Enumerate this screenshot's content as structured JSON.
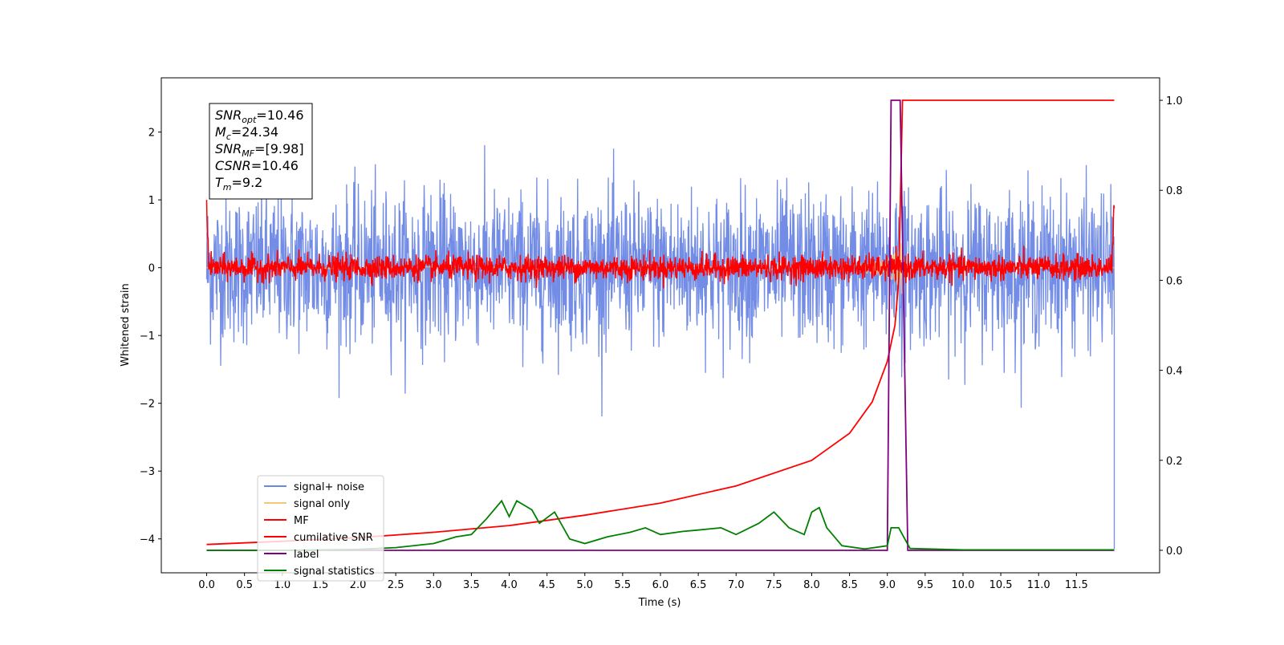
{
  "chart_data": {
    "type": "line",
    "xlabel": "Time (s)",
    "ylabel_left": "Whitened strain",
    "ylabel_right": "",
    "xlim": [
      -0.6,
      12.6
    ],
    "ylim_left": [
      -4.5,
      2.8
    ],
    "ylim_right": [
      -0.05,
      1.05
    ],
    "x_ticks": [
      "0.0",
      "0.5",
      "1.0",
      "1.5",
      "2.0",
      "2.5",
      "3.0",
      "3.5",
      "4.0",
      "4.5",
      "5.0",
      "5.5",
      "6.0",
      "6.5",
      "7.0",
      "7.5",
      "8.0",
      "8.5",
      "9.0",
      "9.5",
      "10.0",
      "10.5",
      "11.0",
      "11.5"
    ],
    "y_ticks_left": [
      "−4",
      "−3",
      "−2",
      "−1",
      "0",
      "1",
      "2"
    ],
    "y_ticks_right": [
      "0.0",
      "0.2",
      "0.4",
      "0.6",
      "0.8",
      "1.0"
    ],
    "grid": false,
    "legend_position": "lower-left",
    "annotation": {
      "lines": [
        {
          "sym": "SNR",
          "sub": "opt",
          "rest": "=10.46"
        },
        {
          "sym": "M",
          "sub": "c",
          "rest": "=24.34"
        },
        {
          "sym": "SNR",
          "sub": "MF",
          "rest": "=[9.98]"
        },
        {
          "sym": "CSNR",
          "sub": "",
          "rest": "=10.46"
        },
        {
          "sym": "T",
          "sub": "m",
          "rest": "=9.2"
        }
      ]
    },
    "series": [
      {
        "name": "signal+ noise",
        "axis": "left",
        "color": "#6b87e6",
        "description_values": {
          "noise_sigma": 0.55,
          "t_start": 0.0,
          "t_end": 12.0
        }
      },
      {
        "name": "signal only",
        "axis": "left",
        "color": "#f5c878",
        "description_values": {
          "merger_time": 9.2,
          "peak_amplitude": 0.45
        }
      },
      {
        "name": "MF",
        "axis": "left",
        "color": "#ff0000",
        "description_values": {
          "noise_sigma": 0.09,
          "t_start": 0.0,
          "t_end": 12.0
        }
      },
      {
        "name": "cumilative SNR",
        "axis": "right",
        "color": "#ff0000",
        "points": [
          [
            0.0,
            0.013
          ],
          [
            1.0,
            0.02
          ],
          [
            2.0,
            0.028
          ],
          [
            3.0,
            0.04
          ],
          [
            4.0,
            0.055
          ],
          [
            5.0,
            0.078
          ],
          [
            6.0,
            0.105
          ],
          [
            7.0,
            0.143
          ],
          [
            8.0,
            0.2
          ],
          [
            8.5,
            0.26
          ],
          [
            8.8,
            0.33
          ],
          [
            9.0,
            0.42
          ],
          [
            9.1,
            0.5
          ],
          [
            9.15,
            0.6
          ],
          [
            9.2,
            1.0
          ],
          [
            12.0,
            1.0
          ]
        ]
      },
      {
        "name": "label",
        "axis": "right",
        "color": "#800080",
        "points": [
          [
            0.0,
            0.0
          ],
          [
            9.0,
            0.0
          ],
          [
            9.05,
            1.0
          ],
          [
            9.17,
            1.0
          ],
          [
            9.27,
            0.0
          ],
          [
            12.0,
            0.0
          ]
        ]
      },
      {
        "name": "signal statistics",
        "axis": "right",
        "color": "#008000",
        "points": [
          [
            0.0,
            0.0
          ],
          [
            1.0,
            0.0
          ],
          [
            2.0,
            0.002
          ],
          [
            2.5,
            0.006
          ],
          [
            3.0,
            0.015
          ],
          [
            3.3,
            0.03
          ],
          [
            3.5,
            0.035
          ],
          [
            3.7,
            0.07
          ],
          [
            3.9,
            0.11
          ],
          [
            4.0,
            0.075
          ],
          [
            4.1,
            0.11
          ],
          [
            4.2,
            0.1
          ],
          [
            4.3,
            0.09
          ],
          [
            4.4,
            0.06
          ],
          [
            4.6,
            0.085
          ],
          [
            4.8,
            0.025
          ],
          [
            5.0,
            0.015
          ],
          [
            5.3,
            0.03
          ],
          [
            5.6,
            0.04
          ],
          [
            5.8,
            0.05
          ],
          [
            6.0,
            0.035
          ],
          [
            6.3,
            0.042
          ],
          [
            6.5,
            0.045
          ],
          [
            6.8,
            0.05
          ],
          [
            7.0,
            0.035
          ],
          [
            7.3,
            0.06
          ],
          [
            7.5,
            0.085
          ],
          [
            7.7,
            0.05
          ],
          [
            7.9,
            0.035
          ],
          [
            8.0,
            0.085
          ],
          [
            8.1,
            0.095
          ],
          [
            8.2,
            0.05
          ],
          [
            8.4,
            0.01
          ],
          [
            8.7,
            0.003
          ],
          [
            9.0,
            0.01
          ],
          [
            9.05,
            0.05
          ],
          [
            9.15,
            0.05
          ],
          [
            9.3,
            0.004
          ],
          [
            10.0,
            0.001
          ],
          [
            12.0,
            0.001
          ]
        ]
      }
    ]
  }
}
